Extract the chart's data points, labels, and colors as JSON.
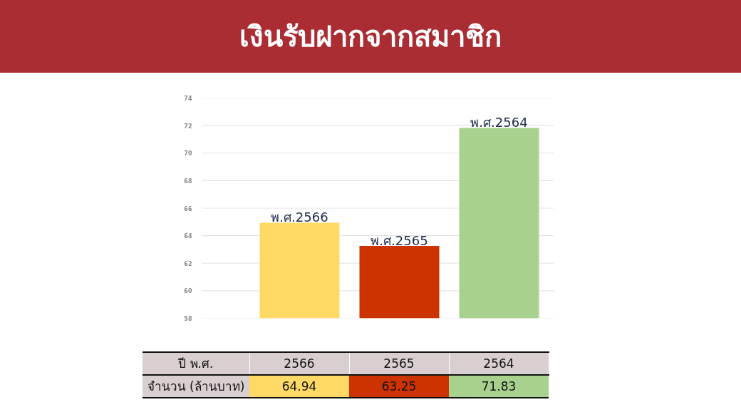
{
  "chart_data": {
    "type": "bar",
    "title": "เงินรับฝากจากสมาชิก",
    "xlabel": "ปี พ.ศ.",
    "ylabel": "จำนวน (ล้านบาท)",
    "categories": [
      "2566",
      "2565",
      "2564"
    ],
    "values": [
      64.94,
      63.25,
      71.83
    ],
    "colors": [
      "#fed966",
      "#cc3300",
      "#a9d18e"
    ],
    "ylim": [
      58,
      74
    ],
    "yticks": [
      58,
      60,
      62,
      64,
      66,
      68,
      70,
      72,
      74
    ],
    "grid": "y",
    "tick_labels": "y",
    "data_labels": true,
    "annotations": [
      {
        "text": "พ.ศ.2566",
        "x": "2566",
        "y": 64.94
      },
      {
        "text": "พ.ศ.2565",
        "x": "2565",
        "y": 63.25
      },
      {
        "text": "พ.ศ.2564",
        "x": "2564",
        "y": 71.83
      }
    ]
  }
}
